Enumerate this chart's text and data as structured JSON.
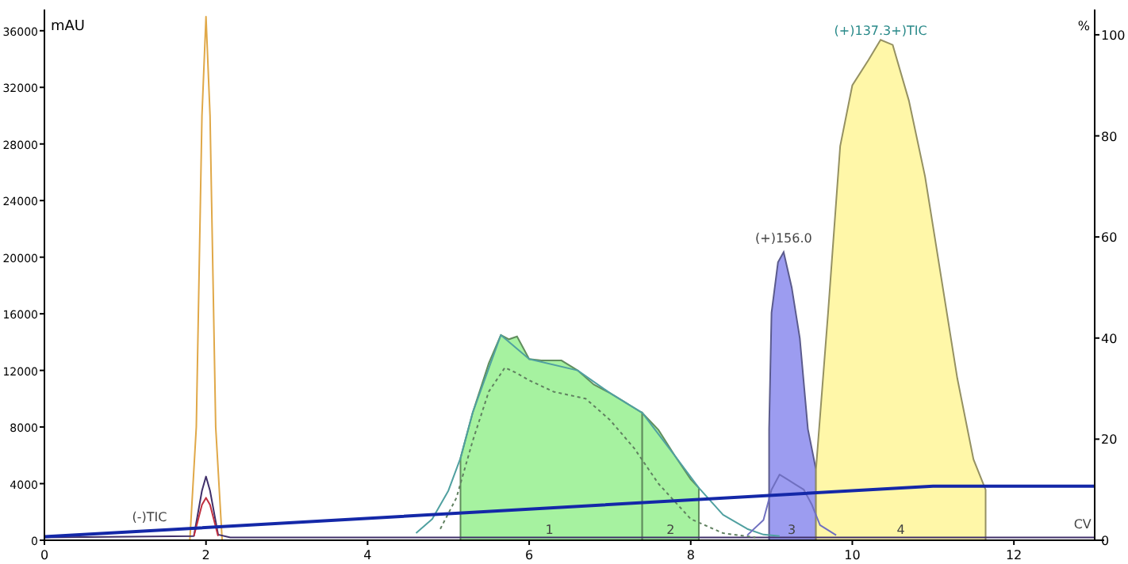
{
  "chart_data": {
    "type": "line",
    "ylabel": "mAU",
    "y2label": "%",
    "xlim": [
      0,
      13
    ],
    "xticks": [
      0,
      2,
      4,
      6,
      8,
      10,
      12
    ],
    "ylim": [
      0,
      37500
    ],
    "yticks": [
      0,
      4000,
      8000,
      12000,
      16000,
      20000,
      24000,
      28000,
      32000,
      36000
    ],
    "y2lim": [
      0,
      105
    ],
    "y2ticks": [
      0,
      20,
      40,
      60,
      80,
      100
    ],
    "grid": false,
    "series": [
      {
        "type": "area",
        "color": "#a6f2a0",
        "x": [
          5.15,
          5.3,
          5.5,
          5.65,
          5.75,
          5.85,
          6.0,
          6.15,
          6.4,
          6.6,
          6.8,
          7.0,
          7.2,
          7.4
        ],
        "values": [
          5800,
          9000,
          12500,
          14500,
          14200,
          14400,
          12800,
          12700,
          12700,
          12000,
          11000,
          10400,
          9700,
          9000
        ]
      },
      {
        "type": "area",
        "color": "#a6f2a0",
        "x": [
          7.4,
          7.6,
          7.8,
          8.0,
          8.1
        ],
        "values": [
          9000,
          7800,
          6000,
          4300,
          3700
        ]
      },
      {
        "type": "area",
        "color": "#9c9cf0",
        "axis": "y2",
        "x": [
          8.97,
          9.0,
          9.08,
          9.15,
          9.25,
          9.35,
          9.45,
          9.55
        ],
        "values": [
          22,
          45,
          55,
          57,
          50,
          40,
          22,
          14
        ]
      },
      {
        "type": "area",
        "color": "#fff7a8",
        "axis": "y2",
        "x": [
          9.55,
          9.7,
          9.85,
          10.0,
          10.2,
          10.35,
          10.5,
          10.7,
          10.9,
          11.1,
          11.3,
          11.5,
          11.65
        ],
        "values": [
          14,
          45,
          78,
          90,
          95,
          99,
          98,
          87,
          72,
          52,
          32,
          16,
          10
        ]
      },
      {
        "color": "#e0a848",
        "x": [
          0,
          1.8,
          1.88,
          1.95,
          2.0,
          2.05,
          2.12,
          2.2,
          2.4,
          13
        ],
        "values": [
          0,
          0,
          8000,
          30000,
          37000,
          30000,
          8000,
          0,
          0,
          0
        ]
      },
      {
        "color": "#40306a",
        "x": [
          0,
          1.85,
          1.95,
          2.0,
          2.05,
          2.15,
          2.3,
          13
        ],
        "values": [
          200,
          300,
          3500,
          4500,
          3500,
          400,
          200,
          200
        ]
      },
      {
        "color": "#c03040",
        "x": [
          1.85,
          1.95,
          2.0,
          2.05,
          2.15
        ],
        "values": [
          300,
          2500,
          3000,
          2500,
          300
        ]
      },
      {
        "color": "#50a0a0",
        "x": [
          4.6,
          4.8,
          5.0,
          5.15,
          5.3,
          5.65,
          6.0,
          6.6,
          7.0,
          7.4,
          7.8,
          8.1,
          8.4,
          8.7,
          8.9,
          9.1
        ],
        "values": [
          500,
          1500,
          3500,
          5800,
          9000,
          14500,
          12800,
          12000,
          10400,
          9000,
          6000,
          3700,
          1800,
          800,
          400,
          300
        ]
      },
      {
        "color": "#608060",
        "line_style": "dotted",
        "x": [
          4.9,
          5.1,
          5.3,
          5.5,
          5.7,
          5.85,
          6.0,
          6.3,
          6.7,
          7.0,
          7.3,
          7.6,
          8.0,
          8.4,
          8.8
        ],
        "values": [
          800,
          3000,
          7000,
          10500,
          12200,
          11800,
          11300,
          10500,
          10000,
          8500,
          6500,
          4000,
          1500,
          500,
          200
        ]
      },
      {
        "color": "#7070c0",
        "axis": "y2",
        "x": [
          8.7,
          8.9,
          9.0,
          9.1,
          9.2,
          9.3,
          9.4,
          9.5,
          9.6,
          9.8
        ],
        "values": [
          1,
          4,
          10,
          13,
          12,
          11,
          10,
          7,
          3,
          1
        ]
      },
      {
        "color": "#1428a8",
        "axis": "y2",
        "x": [
          0,
          11,
          13
        ],
        "values": [
          0.7,
          10.7,
          10.7
        ]
      }
    ],
    "annotations": [
      {
        "text": "(-)TIC",
        "x": 1.3,
        "y": 1100
      },
      {
        "text": "(+)156.0",
        "x": 9.15,
        "y": 20800
      },
      "(+)137.3+)TIC",
      {
        "text": "CV",
        "x": 12.85,
        "y": 600
      },
      {
        "text": "1",
        "x": 6.25,
        "y": 200
      },
      {
        "text": "2",
        "x": 7.75,
        "y": 200
      },
      {
        "text": "3",
        "x": 9.25,
        "y": 200
      },
      {
        "text": "4",
        "x": 10.6,
        "y": 200
      }
    ]
  }
}
